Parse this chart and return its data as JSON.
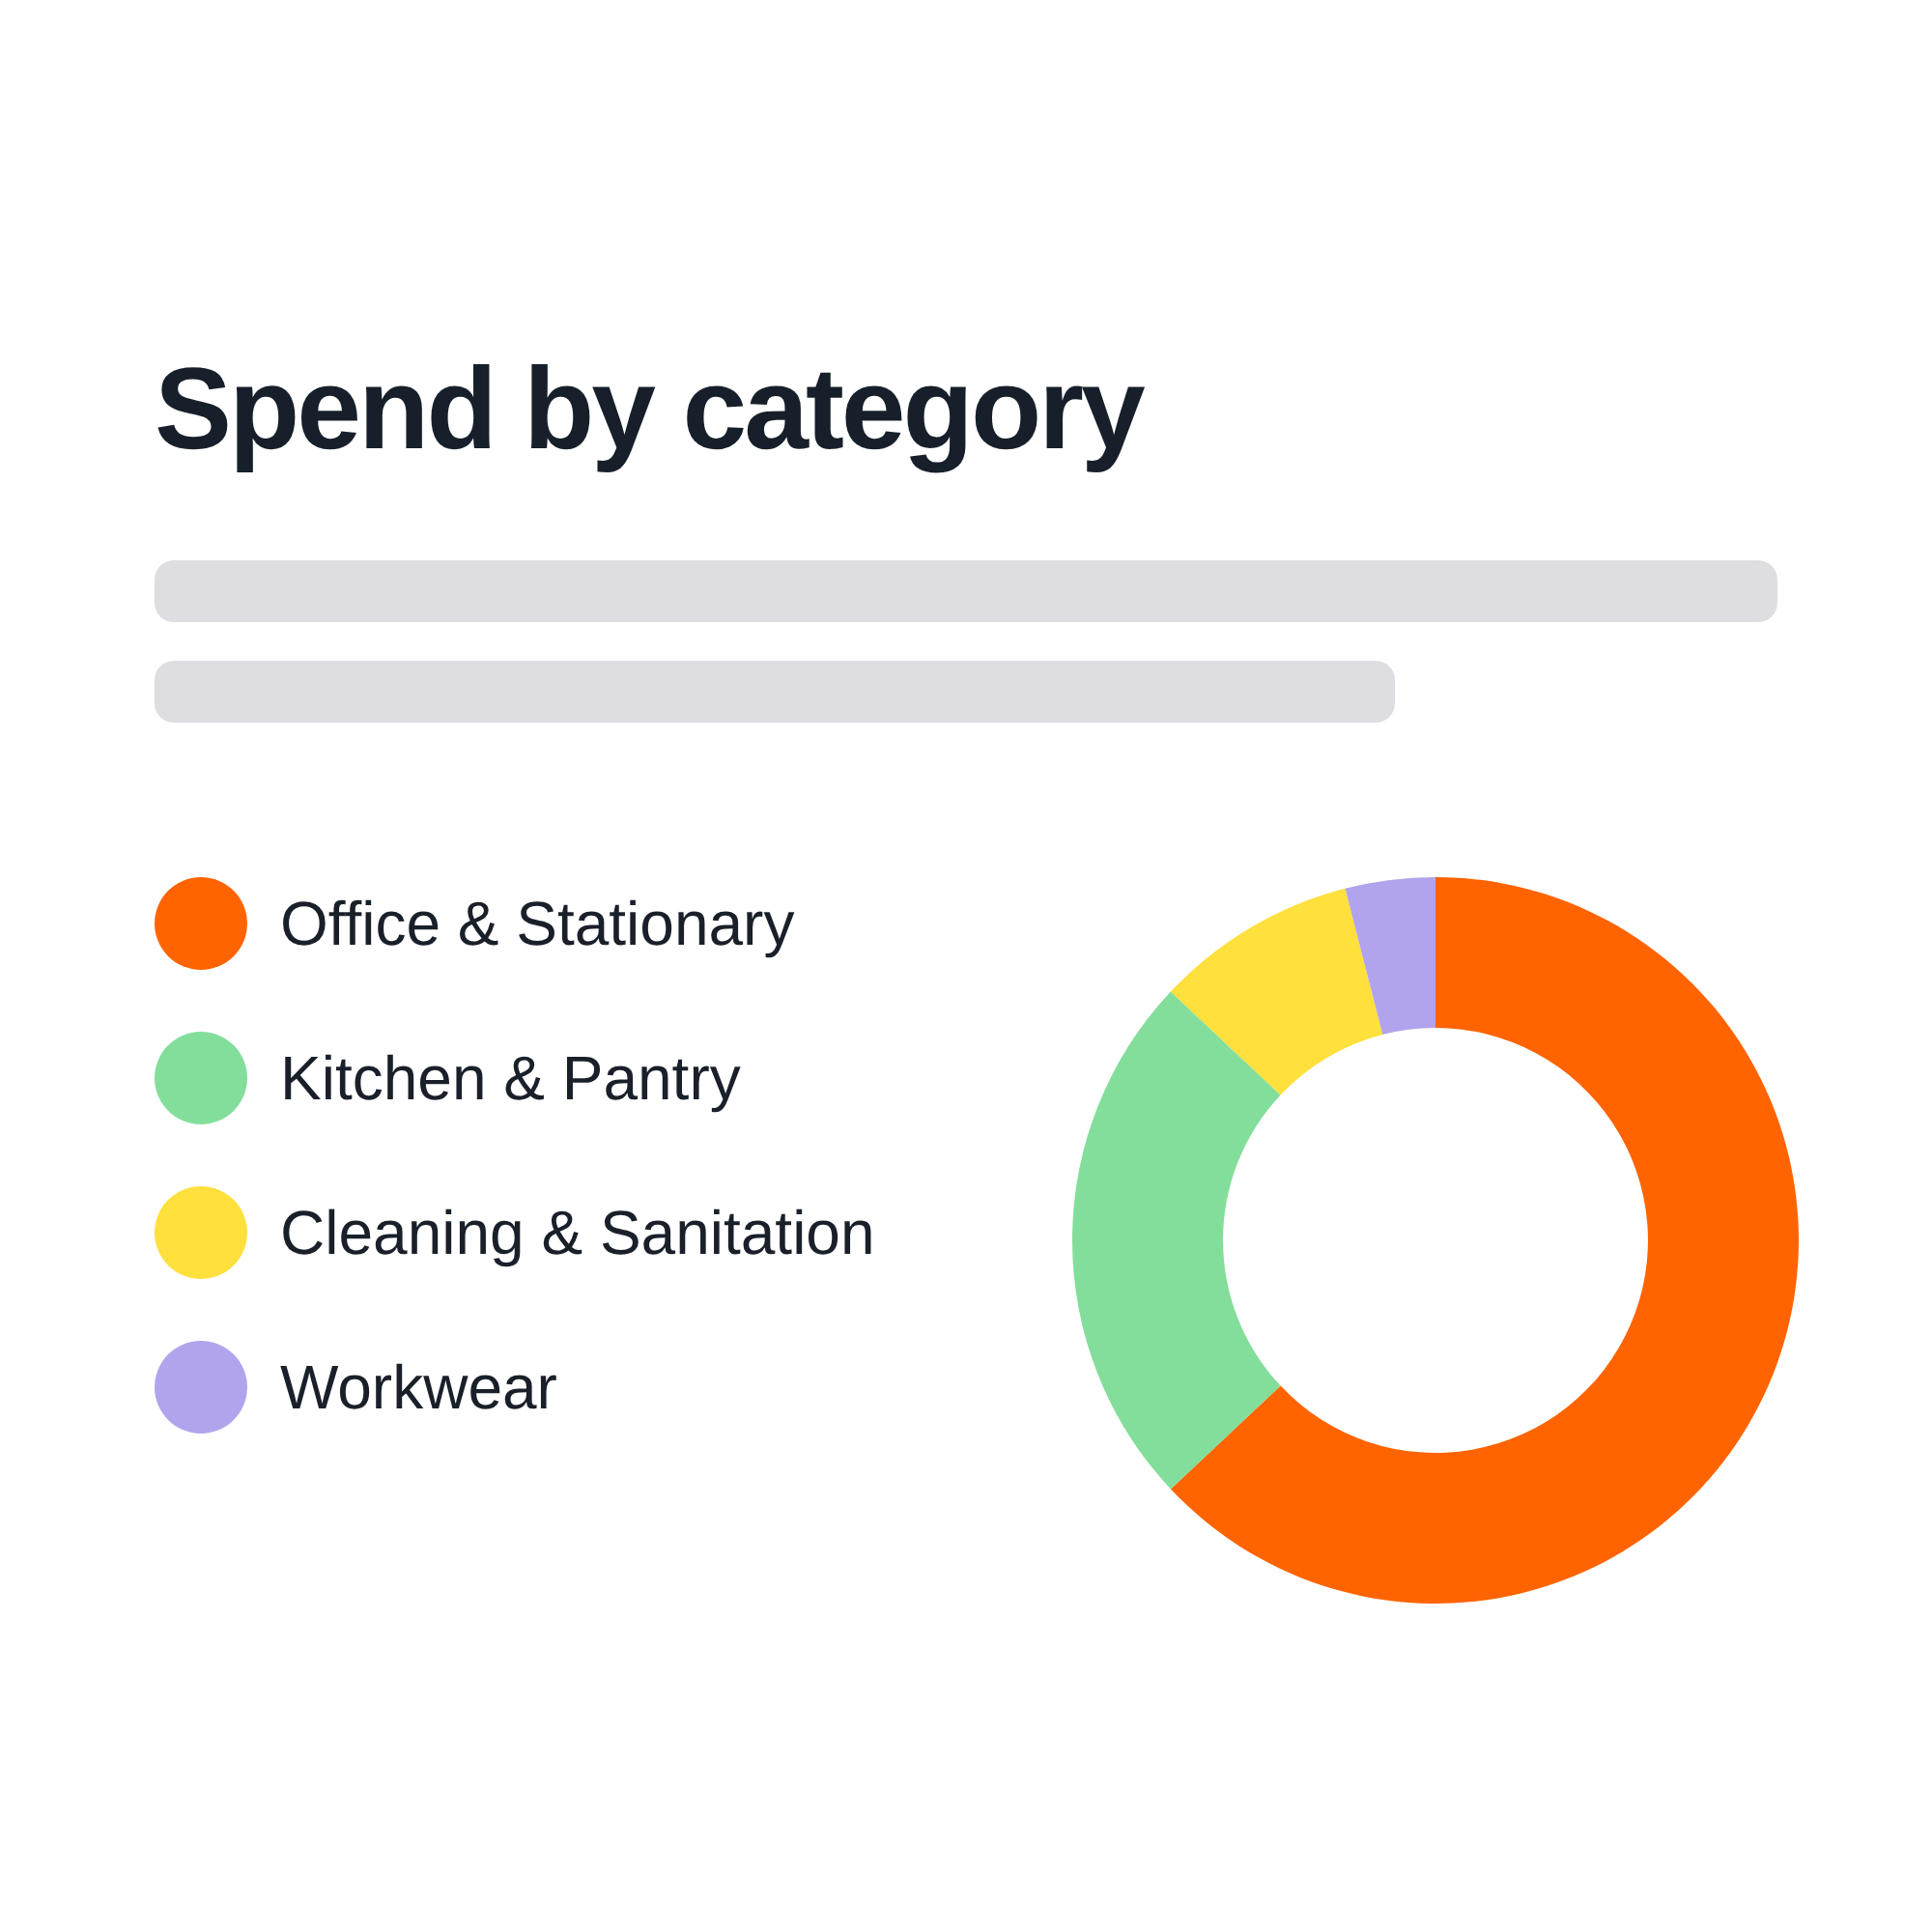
{
  "chart_data": {
    "type": "donut",
    "title": "Spend by category",
    "categories": [
      "Office & Stationary",
      "Kitchen & Pantry",
      "Cleaning & Sanitation",
      "Workwear"
    ],
    "values": [
      63,
      24,
      9,
      4
    ],
    "colors": [
      "#ff6400",
      "#84de9b",
      "#ffe03c",
      "#b1a4ed"
    ],
    "legend": "left"
  }
}
